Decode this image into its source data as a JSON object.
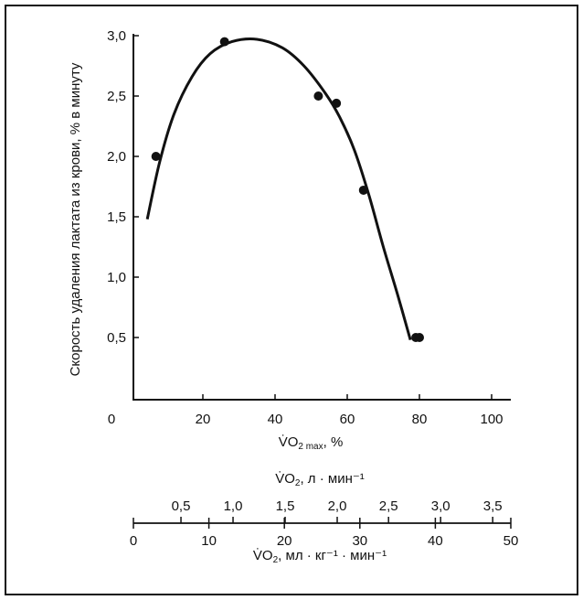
{
  "chart_data": {
    "type": "scatter",
    "ylabel": "Скорость удаления лактата из крови, % в минуту",
    "xlabel_main": "V̇O2 max, %",
    "xlabel_main_base": "V̇O",
    "xlabel_main_sub": "2 max",
    "xlabel_main_suffix": ", %",
    "ylim": [
      0,
      3.0
    ],
    "xlim": [
      0,
      105
    ],
    "y_ticks": [
      0.5,
      1.0,
      1.5,
      2.0,
      2.5,
      3.0
    ],
    "y_tick_labels": [
      "0,5",
      "1,0",
      "1,5",
      "2,0",
      "2,5",
      "3,0"
    ],
    "x_ticks": [
      0,
      20,
      40,
      60,
      80,
      100
    ],
    "x_tick_labels": [
      "0",
      "20",
      "40",
      "60",
      "80",
      "100"
    ],
    "points": [
      {
        "x": 7,
        "y": 2.0
      },
      {
        "x": 26,
        "y": 2.95
      },
      {
        "x": 52,
        "y": 2.5
      },
      {
        "x": 57,
        "y": 2.44
      },
      {
        "x": 64.5,
        "y": 1.72
      },
      {
        "x": 79,
        "y": 0.5
      },
      {
        "x": 80,
        "y": 0.5
      }
    ],
    "fit_curve": [
      [
        4.6,
        1.48
      ],
      [
        8,
        1.95
      ],
      [
        12,
        2.35
      ],
      [
        17,
        2.66
      ],
      [
        22,
        2.85
      ],
      [
        28,
        2.95
      ],
      [
        35,
        2.97
      ],
      [
        42,
        2.9
      ],
      [
        48,
        2.75
      ],
      [
        54,
        2.52
      ],
      [
        58,
        2.32
      ],
      [
        62,
        2.05
      ],
      [
        66,
        1.68
      ],
      [
        70,
        1.25
      ],
      [
        74,
        0.85
      ],
      [
        77.5,
        0.48
      ]
    ],
    "secondary_axes": {
      "ml_kg_min": {
        "label_base": "V̇O",
        "label_sub": "2",
        "label_suffix": ", мл · кг⁻¹ · мин⁻¹",
        "range": [
          0,
          50
        ],
        "ticks": [
          0,
          10,
          20,
          30,
          40,
          50
        ],
        "tick_labels": [
          "0",
          "10",
          "20",
          "30",
          "40",
          "50"
        ]
      },
      "l_min": {
        "label_base": "V̇O",
        "label_sub": "2",
        "label_suffix": ", л · мин⁻¹",
        "ticks": [
          0.5,
          1.0,
          1.5,
          2.0,
          2.5,
          3.0,
          3.5
        ],
        "tick_labels": [
          "0,5",
          "1,0",
          "1,5",
          "2,0",
          "2,5",
          "3,0",
          "3,5"
        ],
        "positions_ml_kg_min": [
          6.3,
          13.2,
          20.1,
          27.0,
          33.8,
          40.7,
          47.6
        ]
      }
    }
  }
}
